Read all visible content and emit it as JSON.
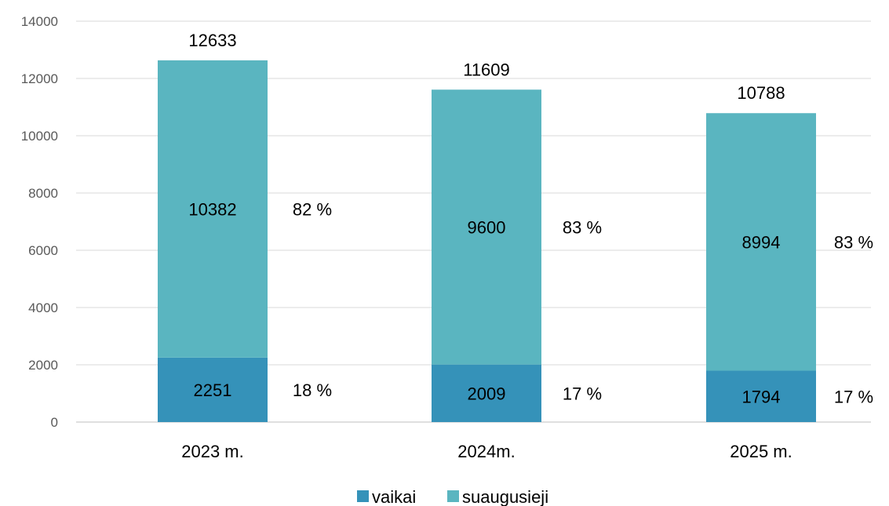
{
  "chart_data": {
    "type": "bar",
    "stacked": true,
    "categories": [
      "2023 m.",
      "2024m.",
      "2025 m."
    ],
    "series": [
      {
        "name": "vaikai",
        "values": [
          2251,
          2009,
          1794
        ],
        "color": "#3592b9",
        "percent_labels": [
          "18 %",
          "17 %",
          "17 %"
        ]
      },
      {
        "name": "suaugusieji",
        "values": [
          10382,
          9600,
          8994
        ],
        "color": "#5ab5c0",
        "percent_labels": [
          "82 %",
          "83 %",
          "83 %"
        ]
      }
    ],
    "totals": [
      12633,
      11609,
      10788
    ],
    "ylim": [
      0,
      14000
    ],
    "yticks": [
      0,
      2000,
      4000,
      6000,
      8000,
      10000,
      12000,
      14000
    ],
    "grid": true,
    "legend_position": "bottom",
    "title": "",
    "xlabel": "",
    "ylabel": ""
  }
}
